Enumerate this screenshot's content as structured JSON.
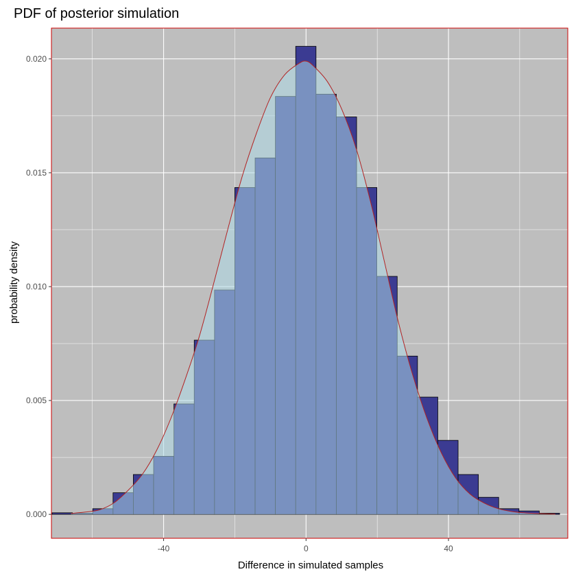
{
  "chart_data": {
    "type": "bar",
    "title": "PDF of posterior simulation",
    "xlabel": "Difference in simulated samples",
    "ylabel": "probability density",
    "xlim": [
      -71.5,
      73.5
    ],
    "ylim": [
      -0.00105,
      0.02135
    ],
    "x_ticks": [
      -40,
      0,
      40
    ],
    "x_tick_labels": [
      "-40",
      "0",
      "40"
    ],
    "y_ticks": [
      0.0,
      0.005,
      0.01,
      0.015,
      0.02
    ],
    "y_tick_labels": [
      "0.000",
      "0.005",
      "0.010",
      "0.015",
      "0.020"
    ],
    "grid": true,
    "bin_width": 5.7,
    "histogram": {
      "bin_left_edges": [
        -71.3,
        -65.6,
        -59.9,
        -54.2,
        -48.5,
        -42.8,
        -37.1,
        -31.4,
        -25.7,
        -20.0,
        -14.3,
        -8.6,
        -2.9,
        2.8,
        8.5,
        14.2,
        19.9,
        25.6,
        31.3,
        37.0,
        42.7,
        48.4,
        54.1,
        59.8,
        65.5
      ],
      "density": [
        7e-05,
        5e-05,
        0.00025,
        0.00095,
        0.00175,
        0.00255,
        0.00485,
        0.00765,
        0.00985,
        0.01435,
        0.01565,
        0.01835,
        0.02055,
        0.01845,
        0.01745,
        0.01435,
        0.01045,
        0.00695,
        0.00515,
        0.00325,
        0.00175,
        0.00075,
        0.00025,
        0.00015,
        5e-05
      ]
    },
    "density_curve": {
      "x": [
        -66,
        -62,
        -58,
        -54,
        -50,
        -46,
        -42,
        -38,
        -34,
        -30,
        -26,
        -22,
        -18,
        -14,
        -10,
        -6,
        -2,
        0,
        2,
        6,
        10,
        14,
        18,
        22,
        26,
        30,
        34,
        38,
        42,
        46,
        50,
        54,
        58,
        62,
        66,
        70
      ],
      "y": [
        4e-05,
        0.0001,
        0.0002,
        0.0005,
        0.00105,
        0.00175,
        0.0028,
        0.0042,
        0.0059,
        0.0078,
        0.0101,
        0.0125,
        0.0148,
        0.0167,
        0.0183,
        0.0193,
        0.0198,
        0.0199,
        0.0197,
        0.019,
        0.0178,
        0.0161,
        0.0138,
        0.0111,
        0.0084,
        0.0061,
        0.0042,
        0.0027,
        0.0016,
        0.0009,
        0.0005,
        0.00025,
        0.00012,
        6e-05,
        3e-05,
        1e-05
      ]
    },
    "colors": {
      "panel_background": "#bebebe",
      "panel_border": "#cc0000",
      "grid_line": "#ffffff",
      "histogram_fill": "#3b3b92",
      "histogram_outline": "#000000",
      "density_fill": "#add8e6",
      "density_fill_alpha": 0.55,
      "density_line": "#b22222"
    }
  }
}
